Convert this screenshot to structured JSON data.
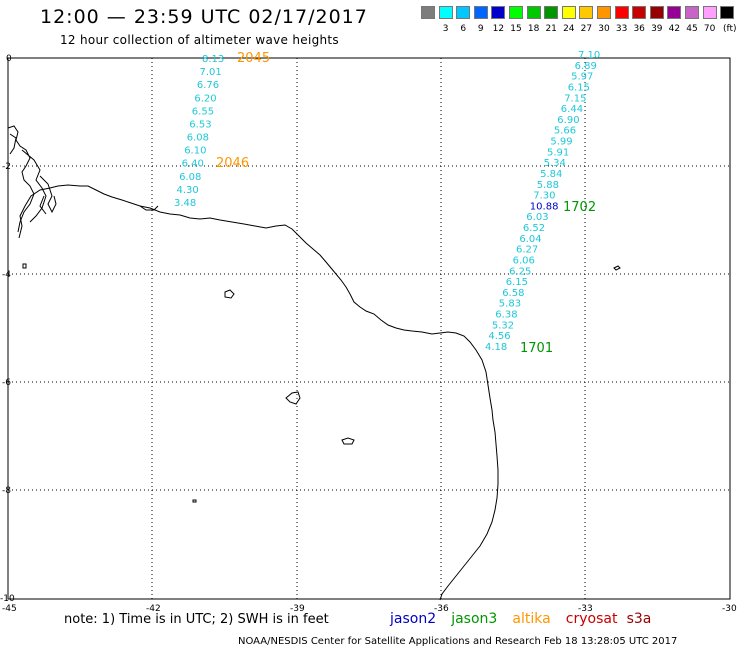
{
  "header": {
    "title": "12:00 — 23:59 UTC 02/17/2017",
    "subtitle": "12 hour collection of altimeter wave heights"
  },
  "legend": {
    "unit": "(ft)",
    "swatches": [
      {
        "color": "#7d7d7d",
        "label": ""
      },
      {
        "color": "#00ffff",
        "label": "3"
      },
      {
        "color": "#00c8ff",
        "label": "6"
      },
      {
        "color": "#0064ff",
        "label": "9"
      },
      {
        "color": "#0000c8",
        "label": "12"
      },
      {
        "color": "#00ff00",
        "label": "15"
      },
      {
        "color": "#00c800",
        "label": "18"
      },
      {
        "color": "#009600",
        "label": "21"
      },
      {
        "color": "#ffff00",
        "label": "24"
      },
      {
        "color": "#ffc800",
        "label": "27"
      },
      {
        "color": "#ff9600",
        "label": "30"
      },
      {
        "color": "#ff0000",
        "label": "33"
      },
      {
        "color": "#c80000",
        "label": "36"
      },
      {
        "color": "#960000",
        "label": "39"
      },
      {
        "color": "#960096",
        "label": "42"
      },
      {
        "color": "#c864c8",
        "label": "45"
      },
      {
        "color": "#ffa0ff",
        "label": "70"
      },
      {
        "color": "#000000",
        "label": ""
      }
    ]
  },
  "axes": {
    "lon_labels": [
      "-45",
      "-42",
      "-39",
      "-36",
      "-33",
      "-30"
    ],
    "lat_labels": [
      "0",
      "-2",
      "-4",
      "-6",
      "-8",
      "-10"
    ]
  },
  "passes": [
    {
      "id": "2045",
      "color": "#ff9600"
    },
    {
      "id": "2046",
      "color": "#ff9600"
    },
    {
      "id": "1702",
      "color": "#009600"
    },
    {
      "id": "1701",
      "color": "#009600"
    }
  ],
  "west_track": {
    "color": "#1fc8d8",
    "values": [
      "8.13",
      "7.01",
      "6.76",
      "6.20",
      "6.55",
      "6.53",
      "6.08",
      "6.10",
      "6.40",
      "6.08",
      "4.30",
      "3.48"
    ]
  },
  "east_track": {
    "color": "#1fc8d8",
    "highlight_color": "#0000c8",
    "values": [
      "7.10",
      "6.89",
      "5.97",
      "6.15",
      "7.15",
      "6.44",
      "6.90",
      "5.66",
      "5.99",
      "5.91",
      "5.34",
      "5.84",
      "5.88",
      "7.30",
      "10.88",
      "6.03",
      "6.52",
      "6.04",
      "6.27",
      "6.06",
      "6.25",
      "6.15",
      "6.58",
      "5.83",
      "6.38",
      "5.32",
      "4.56",
      "4.18"
    ]
  },
  "satellites": [
    {
      "name": "jason2",
      "color": "#0000c8"
    },
    {
      "name": "jason3",
      "color": "#009600"
    },
    {
      "name": "altika",
      "color": "#ff9600"
    },
    {
      "name": "cryosat",
      "color": "#c80000"
    },
    {
      "name": "s3a",
      "color": "#960000"
    }
  ],
  "footer": {
    "note": "note: 1) Time is in UTC; 2) SWH is in feet",
    "credit": "NOAA/NESDIS Center for Satellite Applications and Research   Feb 18 13:28:05 UTC 2017"
  }
}
